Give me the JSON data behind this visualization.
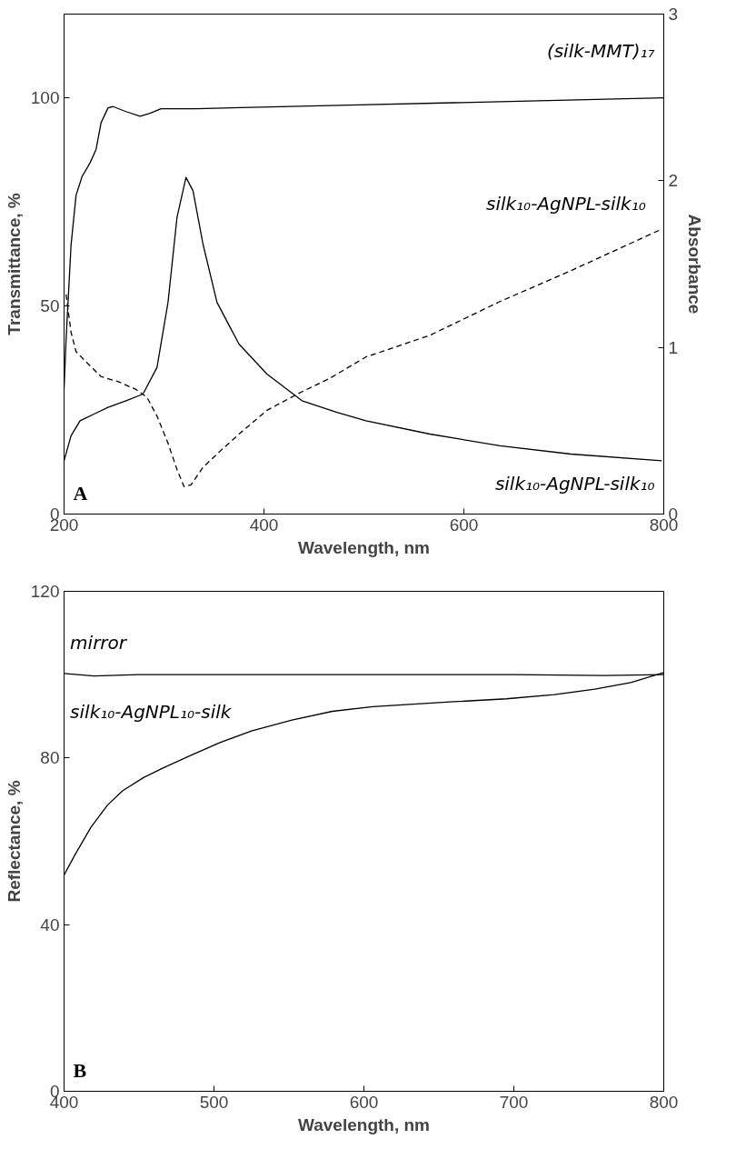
{
  "chart_data": [
    {
      "type": "line",
      "xlabel": "Wavelength, nm",
      "ylabel": "Transmittance, %",
      "y2label": "Absorbance",
      "xlim": [
        200,
        800
      ],
      "ylim": [
        0,
        120
      ],
      "y2lim": [
        0,
        3
      ],
      "xticks": [
        200,
        400,
        600,
        800
      ],
      "yticks": [
        0,
        50,
        100
      ],
      "y2ticks": [
        0,
        1,
        2,
        3
      ],
      "grid": false,
      "legend": false,
      "series": [
        {
          "name": "(silk-MMT)₁₇",
          "color": "#000000",
          "line_style": "solid",
          "x": [
            200,
            202,
            207,
            212,
            218,
            226,
            232,
            237,
            244,
            249,
            262,
            276,
            286,
            297,
            332,
            495,
            800
          ],
          "values": [
            30,
            41.8,
            64.6,
            76.5,
            81,
            84.3,
            87.5,
            93.9,
            97.5,
            97.8,
            96.6,
            95.5,
            96.2,
            97.3,
            97.3,
            98.2,
            99.9
          ]
        },
        {
          "name": "silk₁₀-AgNPL-silk₁₀",
          "color": "#000000",
          "line_style": "dashed",
          "x": [
            202,
            207,
            212,
            223,
            237,
            255,
            272,
            283,
            293,
            304,
            313,
            320,
            327,
            339,
            357,
            378,
            403,
            435,
            466,
            502,
            566,
            636,
            707,
            798
          ],
          "values": [
            52.7,
            43.6,
            39,
            36.3,
            33,
            31.7,
            29.9,
            28,
            23.5,
            17,
            10.7,
            6.6,
            7,
            11.2,
            15.3,
            19.8,
            24.9,
            29,
            32.6,
            37.7,
            42.9,
            51,
            58.4,
            68.4
          ]
        },
        {
          "name": "silk₁₀-AgNPL-silk₁₀",
          "color": "#000000",
          "line_style": "solid",
          "axis": "y2",
          "x": [
            200,
            207,
            216,
            230,
            244,
            262,
            279,
            293,
            304,
            313,
            322,
            329,
            339,
            353,
            375,
            403,
            438,
            473,
            502,
            566,
            636,
            707,
            798
          ],
          "values": [
            0.32,
            0.47,
            0.56,
            0.6,
            0.64,
            0.68,
            0.72,
            0.88,
            1.27,
            1.78,
            2.02,
            1.94,
            1.62,
            1.27,
            1.02,
            0.84,
            0.68,
            0.61,
            0.56,
            0.48,
            0.41,
            0.36,
            0.32
          ]
        }
      ],
      "annotations": [
        "A"
      ]
    },
    {
      "type": "line",
      "xlabel": "Wavelength, nm",
      "ylabel": "Reflectance, %",
      "xlim": [
        400,
        800
      ],
      "ylim": [
        0,
        120
      ],
      "xticks": [
        400,
        500,
        600,
        700,
        800
      ],
      "yticks": [
        0,
        40,
        80,
        120
      ],
      "grid": false,
      "legend": false,
      "series": [
        {
          "name": "mirror",
          "color": "#000000",
          "line_style": "solid",
          "x": [
            400,
            420,
            450,
            500,
            600,
            700,
            760,
            800
          ],
          "values": [
            100.3,
            99.7,
            100,
            100,
            100,
            100,
            99.8,
            100
          ]
        },
        {
          "name": "silk₁₀-AgNPL₁₀-silk",
          "color": "#000000",
          "line_style": "solid",
          "x": [
            400,
            407,
            418,
            429,
            439,
            453,
            466,
            485,
            504,
            525,
            552,
            579,
            606,
            660,
            695,
            727,
            754,
            778,
            800
          ],
          "values": [
            51.9,
            56.6,
            63.4,
            68.7,
            72.1,
            75.3,
            77.6,
            80.7,
            83.7,
            86.5,
            89.1,
            91.2,
            92.3,
            93.5,
            94.2,
            95.2,
            96.5,
            98.1,
            100.5
          ]
        }
      ],
      "annotations": [
        "B"
      ]
    }
  ]
}
